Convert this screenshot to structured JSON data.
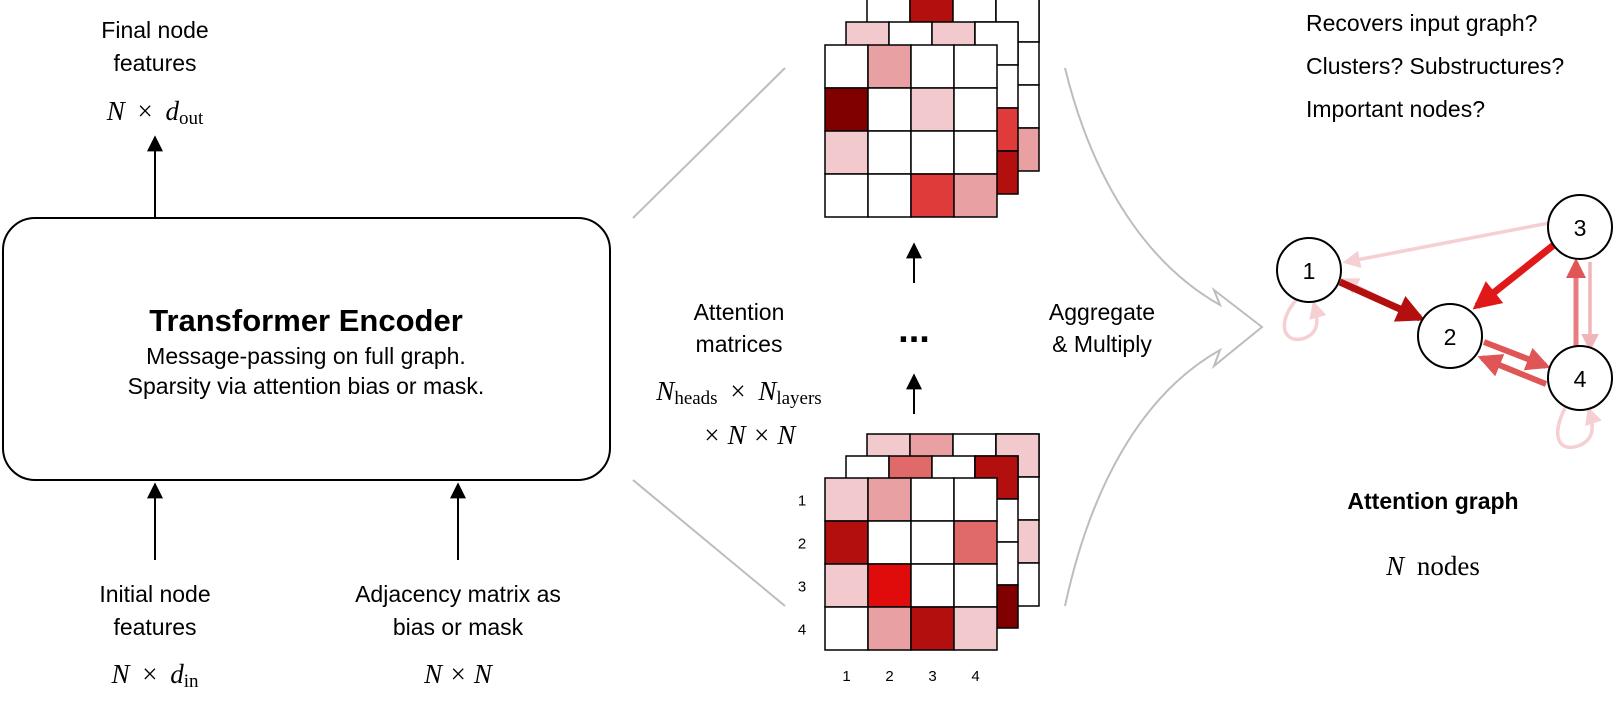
{
  "colors": {
    "white": "#ffffff",
    "light": "#f2c9cc",
    "medium": "#e8a0a3",
    "coral": "#e06a6a",
    "red": "#e03b3b",
    "bright": "#e00c0c",
    "dark": "#b30f0f",
    "darkest": "#800000"
  },
  "encoder": {
    "title": "Transformer Encoder",
    "line1": "Message-passing on full graph.",
    "line2": "Sparsity via attention bias or mask."
  },
  "outputs": {
    "final_label_1": "Final node",
    "final_label_2": "features",
    "final_dim_n": "N",
    "final_dim_times": "×",
    "final_dim_d": "d",
    "final_dim_sub": "out"
  },
  "inputs": {
    "initial_label_1": "Initial node",
    "initial_label_2": "features",
    "initial_dim_n": "N",
    "initial_dim_times": "×",
    "initial_dim_d": "d",
    "initial_dim_sub": "in",
    "adj_label_1": "Adjacency matrix as",
    "adj_label_2": "bias or mask",
    "adj_dim": "N × N"
  },
  "attention": {
    "label_1": "Attention",
    "label_2": "matrices",
    "dim_line1_n1": "N",
    "dim_line1_sub1": "heads",
    "dim_line1_times": "×",
    "dim_line1_n2": "N",
    "dim_line1_sub2": "layers",
    "dim_line2": "× N × N",
    "ellipsis": "...",
    "row_labels": [
      "1",
      "2",
      "3",
      "4"
    ],
    "col_labels": [
      "1",
      "2",
      "3",
      "4"
    ],
    "top_matrix": [
      [
        "white",
        "medium",
        "white",
        "white"
      ],
      [
        "darkest",
        "white",
        "light",
        "white"
      ],
      [
        "light",
        "white",
        "white",
        "white"
      ],
      [
        "white",
        "white",
        "red",
        "medium"
      ]
    ],
    "bottom_matrix": [
      [
        "light",
        "medium",
        "white",
        "white"
      ],
      [
        "dark",
        "white",
        "white",
        "coral"
      ],
      [
        "light",
        "bright",
        "white",
        "white"
      ],
      [
        "white",
        "medium",
        "dark",
        "light"
      ]
    ]
  },
  "aggregate": {
    "label_1": "Aggregate",
    "label_2": "& Multiply"
  },
  "questions": [
    "Recovers input graph?",
    "Clusters? Substructures?",
    "Important nodes?"
  ],
  "graph": {
    "title": "Attention graph",
    "caption_n": "N",
    "caption_text": "nodes",
    "nodes": [
      "1",
      "2",
      "3",
      "4"
    ]
  }
}
